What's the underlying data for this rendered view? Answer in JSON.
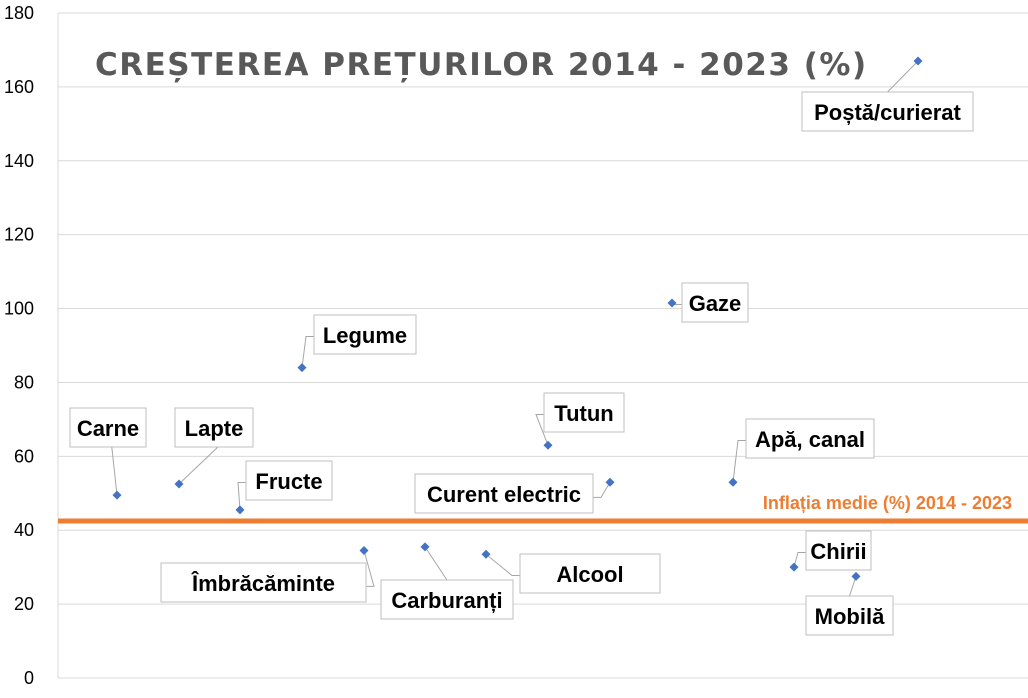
{
  "chart_data": {
    "type": "scatter",
    "title": "CREȘTEREA PREȚURILOR 2014 - 2023 (%)",
    "xlabel": "",
    "ylabel": "",
    "ylim": [
      0,
      180
    ],
    "yticks": [
      0,
      20,
      40,
      60,
      80,
      100,
      120,
      140,
      160,
      180
    ],
    "grid": true,
    "points": [
      {
        "label": "Carne",
        "x": 1,
        "y": 49.5
      },
      {
        "label": "Lapte",
        "x": 2,
        "y": 52.5
      },
      {
        "label": "Fructe",
        "x": 3,
        "y": 45.5
      },
      {
        "label": "Legume",
        "x": 4,
        "y": 84
      },
      {
        "label": "Îmbrăcăminte",
        "x": 5,
        "y": 34.5
      },
      {
        "label": "Carburanți",
        "x": 6,
        "y": 35.5
      },
      {
        "label": "Alcool",
        "x": 7,
        "y": 33.5
      },
      {
        "label": "Tutun",
        "x": 8,
        "y": 63
      },
      {
        "label": "Curent electric",
        "x": 9,
        "y": 53
      },
      {
        "label": "Gaze",
        "x": 10,
        "y": 101.5
      },
      {
        "label": "Apă, canal",
        "x": 11,
        "y": 53
      },
      {
        "label": "Chirii",
        "x": 12,
        "y": 30
      },
      {
        "label": "Mobilă",
        "x": 13,
        "y": 27.5
      },
      {
        "label": "Poștă/curierat",
        "x": 14,
        "y": 167
      }
    ],
    "reference_line": {
      "label": "Inflația medie (%) 2014 - 2023",
      "y": 42.5
    }
  },
  "colors": {
    "points": "#4472c4",
    "reference_line": "#ed7d31",
    "title": "#595959",
    "grid": "#d9d9d9"
  }
}
